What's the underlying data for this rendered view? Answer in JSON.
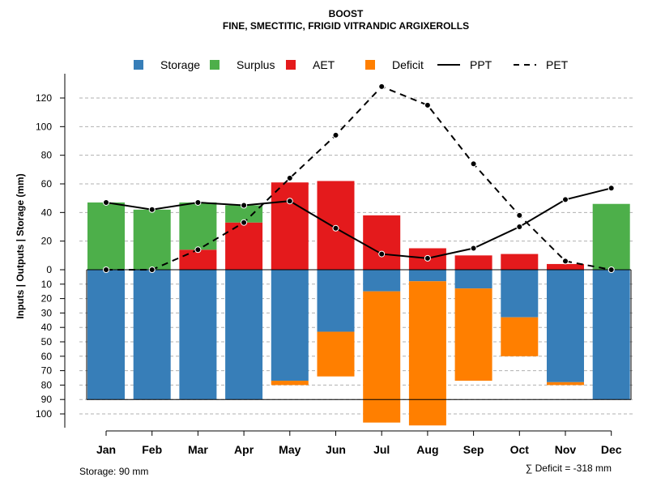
{
  "chart_data": {
    "type": "bar",
    "title": "BOOST",
    "subtitle": "FINE, SMECTITIC, FRIGID VITRANDIC ARGIXEROLLS",
    "ylabel_parts": [
      "Inputs",
      "|",
      "Outputs",
      "|",
      "Storage",
      "(mm)"
    ],
    "categories": [
      "Jan",
      "Feb",
      "Mar",
      "Apr",
      "May",
      "Jun",
      "Jul",
      "Aug",
      "Sep",
      "Oct",
      "Nov",
      "Dec"
    ],
    "legend": [
      {
        "key": "storage",
        "label": "Storage",
        "kind": "box",
        "color": "#377EB8"
      },
      {
        "key": "surplus",
        "label": "Surplus",
        "kind": "box",
        "color": "#4DAF4A"
      },
      {
        "key": "aet",
        "label": "AET",
        "kind": "box",
        "color": "#E41A1C"
      },
      {
        "key": "deficit",
        "label": "Deficit",
        "kind": "box",
        "color": "#FF7F00"
      },
      {
        "key": "ppt",
        "label": "PPT",
        "kind": "solid",
        "color": "#000000"
      },
      {
        "key": "pet",
        "label": "PET",
        "kind": "dashed",
        "color": "#000000"
      }
    ],
    "upper_ticks": [
      0,
      20,
      40,
      60,
      80,
      100,
      120
    ],
    "lower_ticks": [
      10,
      20,
      30,
      40,
      50,
      60,
      70,
      80,
      90,
      100
    ],
    "upper_ylim": [
      0,
      130
    ],
    "lower_ylim": [
      0,
      105
    ],
    "storage_capacity": 90,
    "series": {
      "aet": [
        0,
        0,
        14,
        33,
        61,
        62,
        38,
        15,
        10,
        11,
        4,
        0
      ],
      "surplus": [
        47,
        42,
        33,
        12,
        0,
        0,
        0,
        0,
        0,
        0,
        0,
        46
      ],
      "storage": [
        90,
        90,
        90,
        90,
        77,
        43,
        15,
        8,
        13,
        33,
        78,
        90
      ],
      "deficit": [
        0,
        0,
        0,
        0,
        3,
        31,
        91,
        100,
        64,
        27,
        2,
        0
      ],
      "ppt": [
        47,
        42,
        47,
        45,
        48,
        29,
        11,
        8,
        15,
        30,
        49,
        57
      ],
      "pet": [
        0,
        0,
        14,
        33,
        64,
        94,
        128,
        115,
        74,
        38,
        6,
        0
      ]
    },
    "footer_left": "Storage: 90 mm",
    "footer_right": "∑ Deficit = -318 mm"
  }
}
